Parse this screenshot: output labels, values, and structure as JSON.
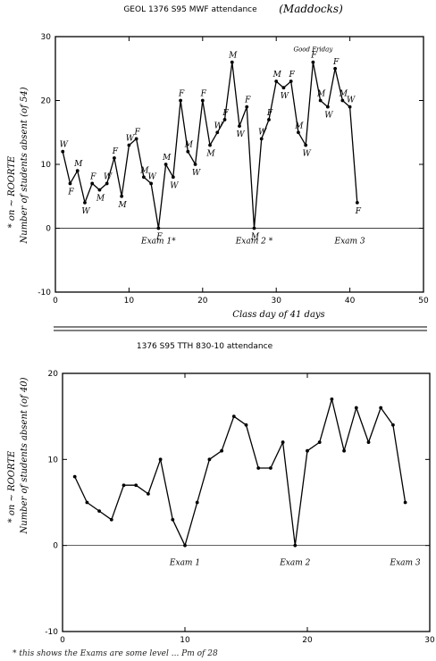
{
  "chart_data": [
    {
      "type": "line",
      "title": "GEOL 1376 S95 MWF attendance",
      "subtitle": "(Maddocks)",
      "xlabel": "Class day of 41 days",
      "ylabel": "Number of students absent (of 54)",
      "ylabel_note": "* on ~ ROORTE",
      "xlim": [
        0,
        50
      ],
      "ylim": [
        -10,
        30
      ],
      "x_ticks": [
        0,
        10,
        20,
        30,
        40,
        50
      ],
      "y_ticks": [
        -10,
        0,
        10,
        20,
        30
      ],
      "grid": false,
      "zero_line": true,
      "series": [
        {
          "x": [
            1,
            2,
            3,
            4,
            5,
            6,
            7,
            8,
            9,
            10,
            11,
            12,
            13,
            14,
            15,
            16,
            17,
            18,
            19,
            20,
            21,
            22,
            23,
            24,
            25,
            26,
            27,
            28,
            29,
            30,
            31,
            32,
            33,
            34,
            35,
            36,
            37,
            38,
            39,
            40,
            41
          ],
          "y": [
            12,
            7,
            9,
            4,
            7,
            6,
            7,
            11,
            5,
            13,
            14,
            8,
            7,
            0,
            10,
            8,
            20,
            12,
            10,
            20,
            13,
            15,
            17,
            26,
            16,
            19,
            0,
            14,
            17,
            23,
            22,
            23,
            15,
            13,
            26,
            20,
            19,
            25,
            20,
            19,
            4
          ],
          "point_labels": [
            "W",
            "F",
            "M",
            "W",
            "F",
            "M",
            "W",
            "F",
            "M",
            "W",
            "F",
            "M",
            "W",
            "F",
            "M",
            "W",
            "F",
            "M",
            "W",
            "F",
            "M",
            "W",
            "F",
            "M",
            "W",
            "F",
            "M",
            "W",
            "F",
            "M",
            "W",
            "F",
            "M",
            "W",
            "F",
            "M",
            "W",
            "F",
            "M",
            "W",
            "F"
          ]
        }
      ],
      "annotations": [
        {
          "text": "Exam 1*",
          "x": 14,
          "y": -1
        },
        {
          "text": "Exam 2 *",
          "x": 27,
          "y": -1
        },
        {
          "text": "Exam 3",
          "x": 40,
          "y": -1
        },
        {
          "text": "Good Friday",
          "x": 35,
          "y": 26
        }
      ]
    },
    {
      "type": "line",
      "title": "1376 S95 TTH 830-10 attendance",
      "xlabel": "",
      "ylabel": "Number of students absent (of 40)",
      "ylabel_note": "* on ~ ROORTE",
      "xlim": [
        0,
        30
      ],
      "ylim": [
        -10,
        20
      ],
      "x_ticks": [
        0,
        10,
        20,
        30
      ],
      "y_ticks": [
        -10,
        0,
        10,
        20
      ],
      "grid": false,
      "zero_line": true,
      "series": [
        {
          "x": [
            1,
            2,
            3,
            4,
            5,
            6,
            7,
            8,
            9,
            10,
            11,
            12,
            13,
            14,
            15,
            16,
            17,
            18,
            19,
            20,
            21,
            22,
            23,
            24,
            25,
            26,
            27,
            28
          ],
          "y": [
            8,
            5,
            4,
            3,
            7,
            7,
            6,
            10,
            3,
            0,
            5,
            10,
            11,
            15,
            14,
            9,
            9,
            12,
            0,
            11,
            12,
            17,
            11,
            16,
            12,
            16,
            14,
            5
          ]
        }
      ],
      "annotations": [
        {
          "text": "Exam 1",
          "x": 10,
          "y": -1
        },
        {
          "text": "Exam 2",
          "x": 19,
          "y": -1
        },
        {
          "text": "Exam 3",
          "x": 28,
          "y": -1
        }
      ]
    }
  ],
  "footer_note": "* this shows the Exams are some level ... Pm of 28"
}
